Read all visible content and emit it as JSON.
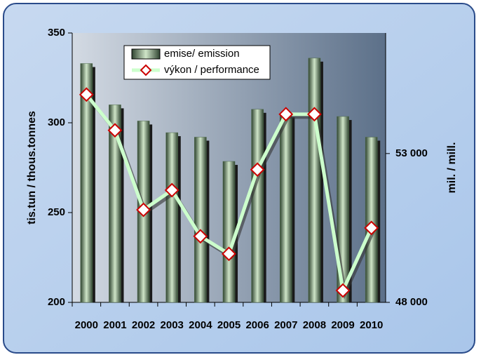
{
  "chart_data": {
    "type": "bar",
    "categories": [
      "2000",
      "2001",
      "2002",
      "2003",
      "2004",
      "2005",
      "2006",
      "2007",
      "2008",
      "2009",
      "2010"
    ],
    "series": [
      {
        "name": "emise/ emission",
        "type": "bar",
        "color": "#4f6b4a",
        "values": [
          333,
          310,
          301,
          294.5,
          292,
          278.5,
          307.5,
          305,
          336,
          303.5,
          292
        ]
      },
      {
        "name": "výkon / performance",
        "type": "line",
        "axis": "y2",
        "color": "#ccffcc",
        "marker_color": "#cc0000",
        "values": [
          54980,
          53780,
          51110,
          51770,
          50220,
          49630,
          52460,
          54320,
          54320,
          48400,
          50500
        ]
      }
    ],
    "ylim": [
      200,
      350
    ],
    "yticks": [
      200,
      250,
      300,
      350
    ],
    "y2lim": [
      48000,
      57050
    ],
    "y2ticks": [
      {
        "value": 48000,
        "label": "48 000"
      },
      {
        "value": 53000,
        "label": "53 000"
      }
    ],
    "ylabel": "tis.tun / thous.tonnes",
    "y2label": "mil. / mill.",
    "grid": false,
    "legend": "top-left"
  }
}
